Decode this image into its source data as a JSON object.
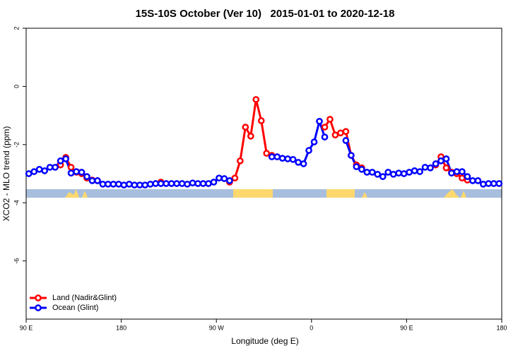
{
  "chart_data": {
    "type": "line",
    "title": "15S-10S October (Ver 10)   2015-01-01 to 2020-12-18",
    "x_label": "Longitude (deg E)",
    "y_label": "XCO2 - MLO trend (ppm)",
    "xlim": [
      90,
      540
    ],
    "ylim": [
      -8,
      2
    ],
    "xticks": [
      {
        "value": 90,
        "label": "90 E"
      },
      180,
      {
        "value": 270,
        "label": "90 W"
      },
      {
        "value": 360,
        "label": "0"
      },
      {
        "value": 450,
        "label": "90 E"
      },
      {
        "value": 540,
        "label": "180"
      }
    ],
    "yticks": [
      -6,
      -4,
      -2,
      0,
      2
    ],
    "legend": "bottom-left",
    "x": [
      92.5,
      97.5,
      102.5,
      107.5,
      112.5,
      117.5,
      122.5,
      127.5,
      132.5,
      137.5,
      142.5,
      147.5,
      152.5,
      157.5,
      162.5,
      167.5,
      172.5,
      177.5,
      182.5,
      187.5,
      192.5,
      197.5,
      202.5,
      207.5,
      212.5,
      217.5,
      222.5,
      227.5,
      232.5,
      237.5,
      242.5,
      247.5,
      252.5,
      257.5,
      262.5,
      267.5,
      272.5,
      277.5,
      282.5,
      287.5,
      292.5,
      297.5,
      302.5,
      307.5,
      312.5,
      317.5,
      322.5,
      327.5,
      332.5,
      337.5,
      342.5,
      347.5,
      352.5,
      357.5,
      362.5,
      367.5,
      372.5,
      377.5,
      382.5,
      387.5,
      392.5,
      397.5,
      402.5,
      407.5,
      412.5,
      417.5,
      422.5,
      427.5,
      432.5,
      437.5,
      442.5,
      447.5,
      452.5,
      457.5,
      462.5,
      467.5,
      472.5,
      477.5,
      482.5,
      487.5,
      492.5,
      497.5,
      502.5,
      507.5,
      512.5,
      517.5,
      522.5,
      527.5,
      532.5,
      537.5
    ],
    "series": [
      {
        "name": "Land (Nadir&Glint)",
        "color": "#ff0000",
        "values": [
          null,
          null,
          null,
          null,
          null,
          null,
          -2.7,
          -2.44,
          -2.78,
          -2.95,
          -3.0,
          -3.15,
          -3.22,
          -3.24,
          null,
          null,
          null,
          null,
          null,
          null,
          null,
          null,
          null,
          null,
          null,
          -3.29,
          null,
          null,
          null,
          null,
          null,
          null,
          null,
          null,
          null,
          null,
          null,
          null,
          -3.29,
          -3.15,
          -2.56,
          -1.4,
          -1.71,
          -0.45,
          -1.18,
          -2.3,
          -2.37,
          -2.42,
          null,
          null,
          null,
          null,
          null,
          null,
          null,
          null,
          -1.4,
          -1.13,
          -1.67,
          -1.6,
          -1.55,
          -2.37,
          -2.7,
          -2.8,
          null,
          null,
          null,
          null,
          null,
          null,
          null,
          null,
          null,
          null,
          null,
          null,
          null,
          -2.7,
          -2.42,
          -2.8,
          -2.95,
          -3.0,
          -3.15,
          -3.22,
          null,
          null,
          null,
          null,
          null,
          null
        ]
      },
      {
        "name": "Ocean (Glint)",
        "color": "#0000ff",
        "values": [
          -3.0,
          -2.93,
          -2.85,
          -2.9,
          -2.78,
          -2.78,
          -2.56,
          -2.49,
          -2.98,
          -2.93,
          -2.95,
          -3.1,
          -3.24,
          -3.24,
          -3.36,
          -3.36,
          -3.36,
          -3.36,
          -3.39,
          -3.36,
          -3.39,
          -3.39,
          -3.39,
          -3.36,
          -3.34,
          -3.34,
          -3.34,
          -3.34,
          -3.34,
          -3.34,
          -3.36,
          -3.32,
          -3.34,
          -3.34,
          -3.34,
          -3.29,
          -3.15,
          -3.17,
          -3.24,
          null,
          null,
          null,
          null,
          null,
          null,
          null,
          -2.42,
          -2.42,
          -2.47,
          -2.49,
          -2.51,
          -2.61,
          -2.66,
          -2.2,
          -1.91,
          -1.2,
          -1.74,
          null,
          null,
          null,
          -1.86,
          -2.37,
          -2.76,
          -2.85,
          -2.95,
          -2.95,
          -3.02,
          -3.1,
          -2.95,
          -3.02,
          -2.98,
          -3.0,
          -2.95,
          -2.9,
          -2.93,
          -2.78,
          -2.8,
          -2.66,
          -2.56,
          -2.49,
          -2.98,
          -2.93,
          -2.93,
          -3.1,
          -3.24,
          -3.24,
          -3.36,
          -3.34,
          -3.34,
          -3.34
        ]
      }
    ]
  }
}
